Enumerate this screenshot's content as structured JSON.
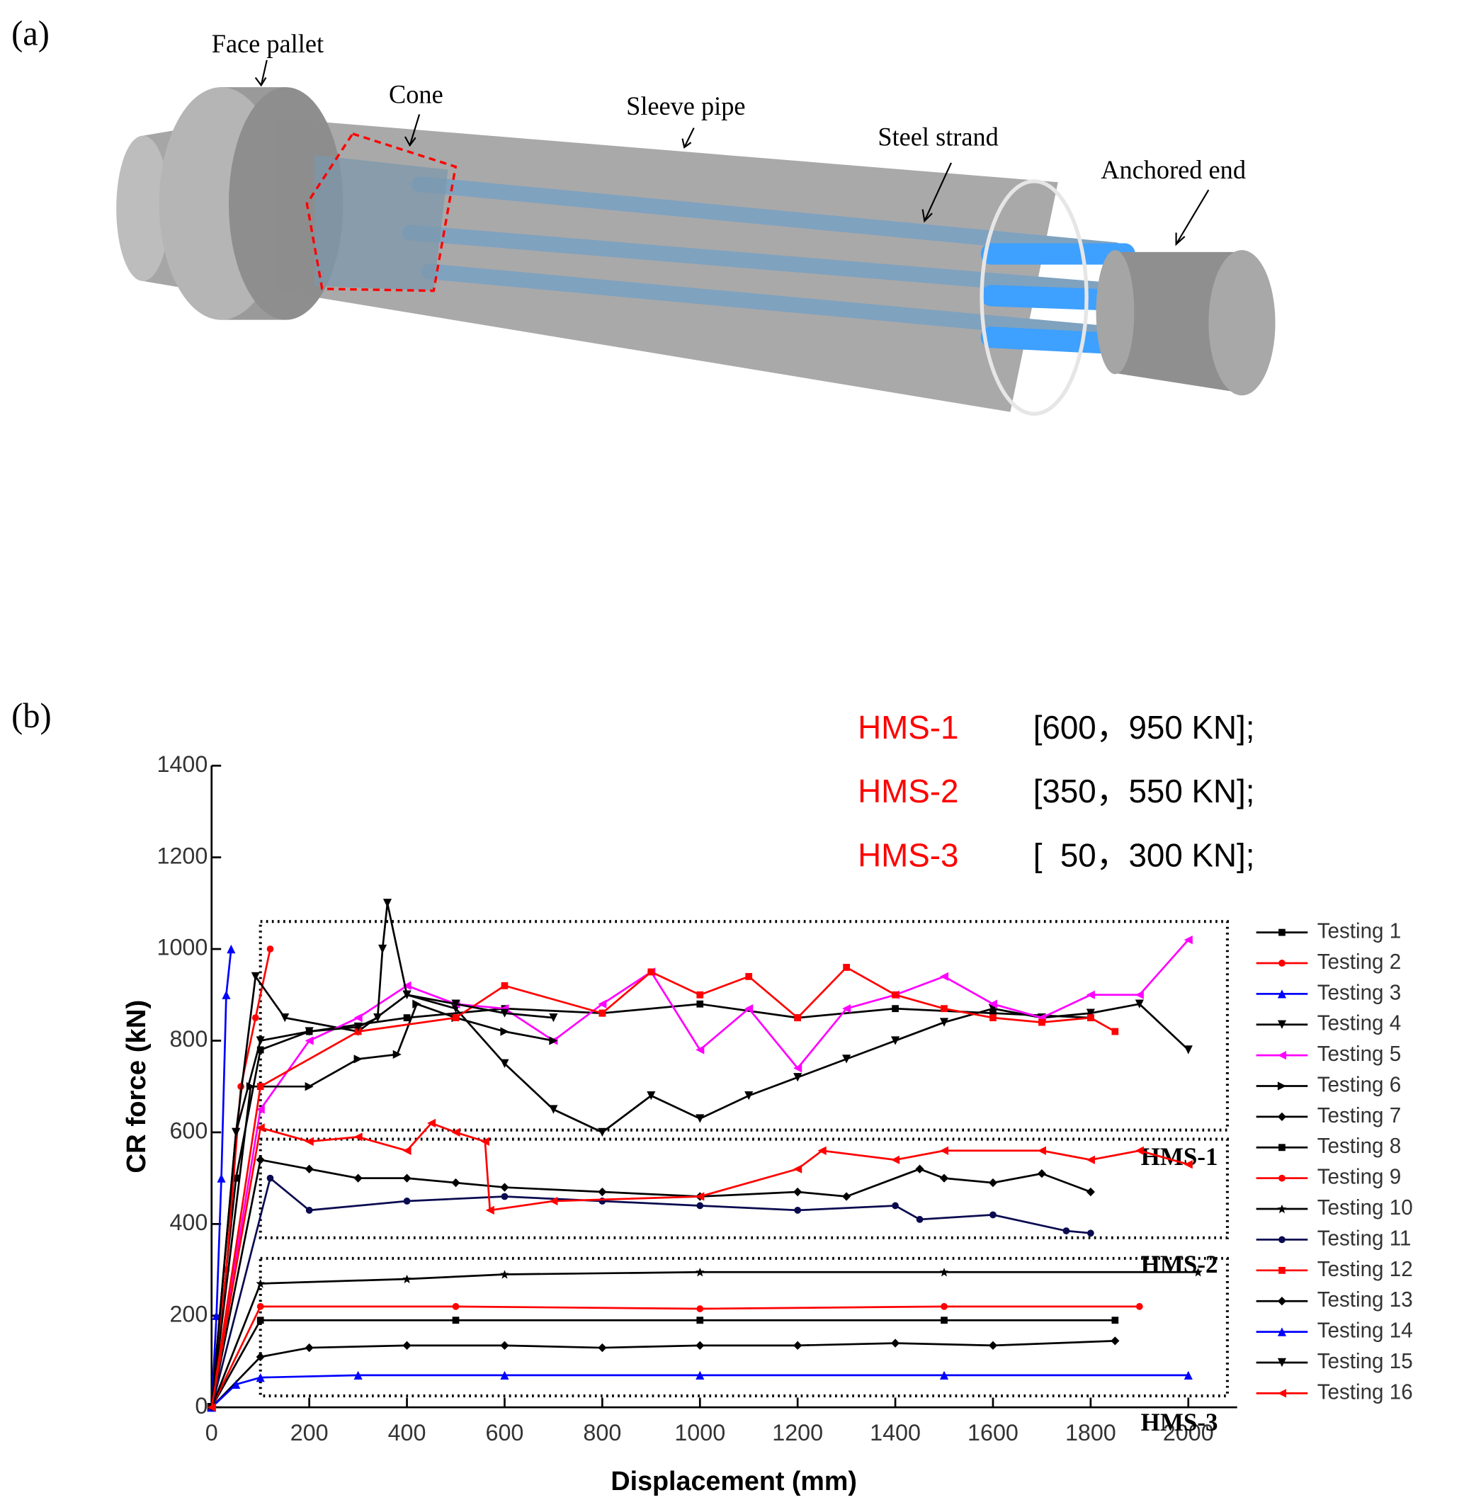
{
  "panel_a": {
    "label": "(a)",
    "parts": [
      "Face pallet",
      "Cone",
      "Sleeve pipe",
      "Steel strand",
      "Anchored end"
    ]
  },
  "panel_b": {
    "label": "(b)"
  },
  "chart_data": {
    "type": "line",
    "xlabel": "Displacement (mm)",
    "ylabel": "CR force (kN)",
    "xlim": [
      0,
      2100
    ],
    "ylim": [
      0,
      1400
    ],
    "xticks": [
      0,
      200,
      400,
      600,
      800,
      1000,
      1200,
      1400,
      1600,
      1800,
      2000
    ],
    "yticks": [
      0,
      200,
      400,
      600,
      800,
      1000,
      1200,
      1400
    ],
    "ranges": [
      {
        "name": "HMS-1",
        "label": "[600，950 KN];"
      },
      {
        "name": "HMS-2",
        "label": "[350，550 KN];"
      },
      {
        "name": "HMS-3",
        "label": "[  50，300 KN];"
      }
    ],
    "regions": [
      {
        "label": "HMS-1",
        "x": [
          100,
          2080
        ],
        "y": [
          605,
          1060
        ]
      },
      {
        "label": "HMS-2",
        "x": [
          100,
          2080
        ],
        "y": [
          370,
          585
        ]
      },
      {
        "label": "HMS-3",
        "x": [
          100,
          2080
        ],
        "y": [
          25,
          325
        ]
      }
    ],
    "series": [
      {
        "name": "Testing 1",
        "color": "#000000",
        "marker": "square",
        "x": [
          0,
          50,
          100,
          200,
          400,
          600,
          800,
          1000,
          1200,
          1400,
          1600,
          1800
        ],
        "values": [
          0,
          500,
          780,
          820,
          850,
          870,
          860,
          880,
          850,
          870,
          860,
          850
        ]
      },
      {
        "name": "Testing 2",
        "color": "#ff0000",
        "marker": "circle",
        "x": [
          0,
          30,
          60,
          90,
          120
        ],
        "values": [
          0,
          300,
          700,
          850,
          1000
        ]
      },
      {
        "name": "Testing 3",
        "color": "#0000ff",
        "marker": "triangle",
        "x": [
          0,
          10,
          20,
          30,
          40
        ],
        "values": [
          0,
          200,
          500,
          900,
          1000
        ]
      },
      {
        "name": "Testing 4",
        "color": "#000000",
        "marker": "triangle-down",
        "x": [
          0,
          50,
          90,
          150,
          300,
          400,
          500,
          600,
          700,
          800,
          900,
          1000,
          1100,
          1200,
          1300,
          1400,
          1500,
          1600,
          1700,
          1800,
          1900,
          2000
        ],
        "values": [
          0,
          600,
          940,
          850,
          820,
          900,
          870,
          750,
          650,
          600,
          680,
          630,
          680,
          720,
          760,
          800,
          840,
          870,
          850,
          860,
          880,
          780
        ]
      },
      {
        "name": "Testing 5",
        "color": "#ff00ff",
        "marker": "triangle-left",
        "x": [
          0,
          100,
          200,
          300,
          400,
          500,
          600,
          700,
          800,
          900,
          1000,
          1100,
          1200,
          1300,
          1400,
          1500,
          1600,
          1700,
          1800,
          1900,
          2000
        ],
        "values": [
          0,
          650,
          800,
          850,
          920,
          880,
          870,
          800,
          880,
          950,
          780,
          870,
          740,
          870,
          900,
          940,
          880,
          850,
          900,
          900,
          1020
        ]
      },
      {
        "name": "Testing 6",
        "color": "#000000",
        "marker": "triangle-right",
        "x": [
          0,
          80,
          200,
          300,
          380,
          420,
          500,
          600,
          700
        ],
        "values": [
          0,
          700,
          700,
          760,
          770,
          880,
          850,
          820,
          800
        ]
      },
      {
        "name": "Testing 7",
        "color": "#000000",
        "marker": "diamond",
        "x": [
          0,
          100,
          200,
          300,
          400,
          500,
          600,
          800,
          1000,
          1200,
          1300,
          1450,
          1500,
          1600,
          1700,
          1800
        ],
        "values": [
          0,
          540,
          520,
          500,
          500,
          490,
          480,
          470,
          460,
          470,
          460,
          520,
          500,
          490,
          510,
          470
        ]
      },
      {
        "name": "Testing 8",
        "color": "#000000",
        "marker": "square",
        "x": [
          0,
          100,
          500,
          1000,
          1500,
          1850
        ],
        "values": [
          0,
          190,
          190,
          190,
          190,
          190
        ]
      },
      {
        "name": "Testing 9",
        "color": "#ff0000",
        "marker": "circle",
        "x": [
          0,
          100,
          500,
          1000,
          1500,
          1900
        ],
        "values": [
          0,
          220,
          220,
          215,
          220,
          220
        ]
      },
      {
        "name": "Testing 10",
        "color": "#000000",
        "marker": "star",
        "x": [
          0,
          100,
          400,
          600,
          1000,
          1500,
          2020
        ],
        "values": [
          0,
          270,
          280,
          290,
          295,
          295,
          295
        ]
      },
      {
        "name": "Testing 11",
        "color": "#0a0a50",
        "marker": "circle",
        "x": [
          0,
          120,
          200,
          400,
          600,
          800,
          1000,
          1200,
          1400,
          1450,
          1600,
          1750,
          1800
        ],
        "values": [
          0,
          500,
          430,
          450,
          460,
          450,
          440,
          430,
          440,
          410,
          420,
          385,
          380
        ]
      },
      {
        "name": "Testing 12",
        "color": "#ff0000",
        "marker": "square",
        "x": [
          0,
          100,
          300,
          500,
          600,
          800,
          900,
          1000,
          1100,
          1200,
          1300,
          1400,
          1500,
          1600,
          1700,
          1800,
          1850
        ],
        "values": [
          0,
          700,
          820,
          850,
          920,
          860,
          950,
          900,
          940,
          850,
          960,
          900,
          870,
          850,
          840,
          850,
          820
        ]
      },
      {
        "name": "Testing 13",
        "color": "#000000",
        "marker": "diamond",
        "x": [
          0,
          100,
          200,
          400,
          600,
          800,
          1000,
          1200,
          1400,
          1600,
          1850
        ],
        "values": [
          0,
          110,
          130,
          135,
          135,
          130,
          135,
          135,
          140,
          135,
          145
        ]
      },
      {
        "name": "Testing 14",
        "color": "#0000ff",
        "marker": "triangle",
        "x": [
          0,
          50,
          100,
          300,
          600,
          1000,
          1500,
          2000
        ],
        "values": [
          0,
          50,
          65,
          70,
          70,
          70,
          70,
          70
        ]
      },
      {
        "name": "Testing 15",
        "color": "#000000",
        "marker": "triangle-down",
        "x": [
          0,
          50,
          100,
          200,
          300,
          340,
          350,
          360,
          400,
          500,
          600,
          700
        ],
        "values": [
          0,
          600,
          800,
          820,
          830,
          850,
          1000,
          1100,
          900,
          880,
          860,
          850
        ]
      },
      {
        "name": "Testing 16",
        "color": "#ff0000",
        "marker": "triangle-left",
        "x": [
          0,
          100,
          200,
          300,
          400,
          450,
          500,
          560,
          570,
          700,
          1000,
          1200,
          1250,
          1400,
          1500,
          1700,
          1800,
          1900,
          2000
        ],
        "values": [
          0,
          610,
          580,
          590,
          560,
          620,
          600,
          580,
          430,
          450,
          460,
          520,
          560,
          540,
          560,
          560,
          540,
          560,
          530
        ]
      }
    ]
  }
}
